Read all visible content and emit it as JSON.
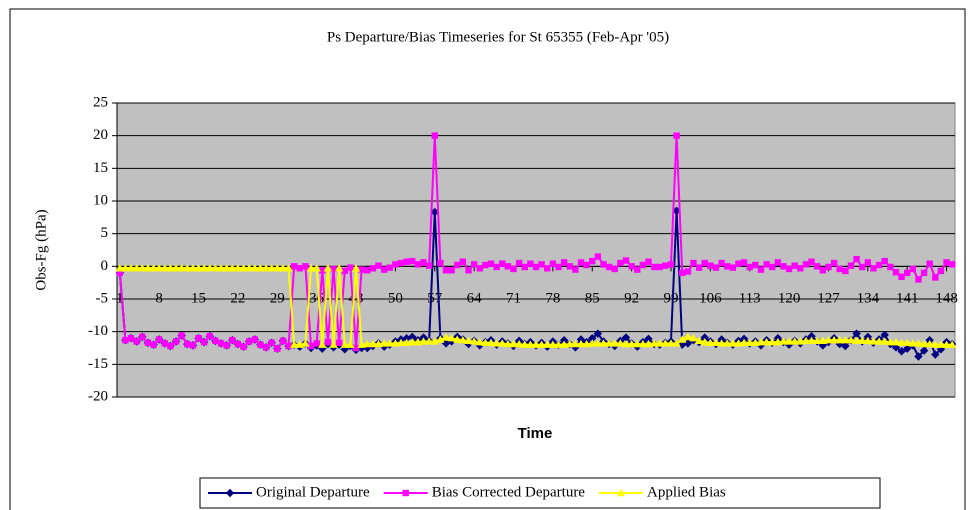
{
  "chart_data": {
    "type": "line",
    "title": "Ps Departure/Bias Timeseries for St 65355 (Feb-Apr '05)",
    "x_label": "Time",
    "y_label": "Obs-Fg (hPa)",
    "x": [
      1,
      2,
      3,
      4,
      5,
      6,
      7,
      8,
      9,
      10,
      11,
      12,
      13,
      14,
      15,
      16,
      17,
      18,
      19,
      20,
      21,
      22,
      23,
      24,
      25,
      26,
      27,
      28,
      29,
      30,
      31,
      32,
      33,
      34,
      35,
      36,
      37,
      38,
      39,
      40,
      41,
      42,
      43,
      44,
      45,
      46,
      47,
      48,
      49,
      50,
      51,
      52,
      53,
      54,
      55,
      56,
      57,
      58,
      59,
      60,
      61,
      62,
      63,
      64,
      65,
      66,
      67,
      68,
      69,
      70,
      71,
      72,
      73,
      74,
      75,
      76,
      77,
      78,
      79,
      80,
      81,
      82,
      83,
      84,
      85,
      86,
      87,
      88,
      89,
      90,
      91,
      92,
      93,
      94,
      95,
      96,
      97,
      98,
      99,
      100,
      101,
      102,
      103,
      104,
      105,
      106,
      107,
      108,
      109,
      110,
      111,
      112,
      113,
      114,
      115,
      116,
      117,
      118,
      119,
      120,
      121,
      122,
      123,
      124,
      125,
      126,
      127,
      128,
      129,
      130,
      131,
      132,
      133,
      134,
      135,
      136,
      137,
      138,
      139,
      140,
      141,
      142,
      143,
      144,
      145,
      146,
      147,
      148,
      149
    ],
    "xlim": [
      0.5,
      149.5
    ],
    "xticks": [
      1,
      8,
      15,
      22,
      29,
      36,
      43,
      50,
      57,
      64,
      71,
      78,
      85,
      92,
      99,
      106,
      113,
      120,
      127,
      134,
      141,
      148
    ],
    "ylim": [
      -20,
      25
    ],
    "yticks": [
      -20,
      -15,
      -10,
      -5,
      0,
      5,
      10,
      15,
      20,
      25
    ],
    "grid": true,
    "legend": "bottom",
    "series": [
      {
        "name": "Original Departure",
        "color": "#000080",
        "marker": "diamond",
        "values": [
          -1,
          -11.3,
          -11.0,
          -11.5,
          -10.8,
          -11.7,
          -12.0,
          -11.2,
          -11.8,
          -12.2,
          -11.5,
          -10.6,
          -11.9,
          -12.1,
          -11.0,
          -11.6,
          -10.7,
          -11.4,
          -11.8,
          -12.1,
          -11.3,
          -11.9,
          -12.3,
          -11.5,
          -11.2,
          -12.0,
          -12.4,
          -11.7,
          -12.6,
          -11.4,
          -12.2,
          -12.0,
          -12.3,
          -11.8,
          -12.5,
          -12.1,
          -12.6,
          -11.9,
          -12.4,
          -12.0,
          -12.7,
          -12.2,
          -12.8,
          -12.5,
          -12.5,
          -12.2,
          -11.8,
          -12.3,
          -12.0,
          -11.5,
          -11.2,
          -11.0,
          -10.8,
          -11.3,
          -10.9,
          -11.4,
          8.3,
          -11.0,
          -11.8,
          -11.5,
          -10.8,
          -11.2,
          -11.9,
          -11.4,
          -12.1,
          -11.6,
          -11.3,
          -12.0,
          -11.5,
          -11.8,
          -12.2,
          -11.4,
          -11.9,
          -11.6,
          -12.1,
          -11.7,
          -12.3,
          -11.5,
          -12.0,
          -11.3,
          -11.9,
          -12.4,
          -11.2,
          -11.6,
          -11.0,
          -10.3,
          -11.5,
          -11.9,
          -12.2,
          -11.4,
          -10.9,
          -11.8,
          -12.3,
          -11.6,
          -11.1,
          -11.9,
          -12.0,
          -11.7,
          -11.5,
          8.5,
          -12.0,
          -11.8,
          -11.3,
          -11.6,
          -10.9,
          -11.5,
          -11.9,
          -11.2,
          -11.7,
          -12.0,
          -11.4,
          -11.1,
          -11.8,
          -11.5,
          -12.1,
          -11.3,
          -11.7,
          -11.0,
          -11.6,
          -12.0,
          -11.4,
          -11.8,
          -11.2,
          -10.7,
          -11.5,
          -12.1,
          -11.6,
          -11.0,
          -11.9,
          -12.2,
          -11.3,
          -10.3,
          -11.5,
          -10.8,
          -11.7,
          -11.2,
          -10.5,
          -11.9,
          -12.4,
          -13.0,
          -12.6,
          -12.1,
          -13.8,
          -12.9,
          -11.3,
          -13.5,
          -12.7,
          -11.6,
          -11.9
        ]
      },
      {
        "name": "Bias Corrected Departure",
        "color": "#ff00ff",
        "marker": "square",
        "values": [
          -1,
          -11.3,
          -11.0,
          -11.5,
          -10.8,
          -11.7,
          -12.0,
          -11.2,
          -11.8,
          -12.2,
          -11.5,
          -10.6,
          -11.9,
          -12.1,
          -11.0,
          -11.6,
          -10.7,
          -11.4,
          -11.8,
          -12.1,
          -11.3,
          -11.9,
          -12.3,
          -11.5,
          -11.2,
          -12.0,
          -12.4,
          -11.7,
          -12.6,
          -11.4,
          -12.2,
          0.0,
          -0.3,
          0.0,
          -12.2,
          -11.8,
          -0.6,
          -11.6,
          -0.4,
          -11.7,
          -0.7,
          -0.2,
          -12.5,
          -0.5,
          -0.6,
          -0.3,
          0.1,
          -0.5,
          -0.2,
          0.3,
          0.5,
          0.7,
          0.8,
          0.3,
          0.6,
          0.1,
          20,
          0.5,
          -0.6,
          -0.6,
          0.2,
          0.7,
          -0.6,
          0.3,
          -0.3,
          0.2,
          0.4,
          -0.1,
          0.4,
          0.0,
          -0.4,
          0.5,
          -0.1,
          0.4,
          -0.1,
          0.3,
          -0.3,
          0.4,
          -0.1,
          0.6,
          0.0,
          -0.5,
          0.6,
          0.2,
          0.8,
          1.5,
          0.3,
          -0.1,
          -0.4,
          0.5,
          0.9,
          0.0,
          -0.5,
          0.2,
          0.7,
          -0.1,
          -0.1,
          0.1,
          0.3,
          20,
          -1.0,
          -0.8,
          0.5,
          -0.2,
          0.5,
          0.1,
          -0.2,
          0.5,
          0.0,
          -0.2,
          0.4,
          0.6,
          -0.1,
          0.2,
          -0.5,
          0.3,
          -0.1,
          0.6,
          0.0,
          -0.4,
          0.1,
          -0.3,
          0.3,
          0.7,
          0.0,
          -0.6,
          -0.1,
          0.5,
          -0.4,
          -0.7,
          0.1,
          1.1,
          -0.1,
          0.6,
          -0.3,
          0.2,
          0.8,
          -0.1,
          -0.9,
          -1.6,
          -1.0,
          -0.4,
          -2.0,
          -1.0,
          0.4,
          -1.7,
          -0.7,
          0.6,
          0.3
        ]
      },
      {
        "name": "Applied Bias",
        "color": "#ffff00",
        "marker": "triangle",
        "values": [
          -0.3,
          -0.3,
          -0.3,
          -0.3,
          -0.3,
          -0.3,
          -0.3,
          -0.3,
          -0.3,
          -0.3,
          -0.3,
          -0.3,
          -0.3,
          -0.3,
          -0.3,
          -0.3,
          -0.3,
          -0.3,
          -0.3,
          -0.3,
          -0.3,
          -0.3,
          -0.3,
          -0.3,
          -0.3,
          -0.3,
          -0.3,
          -0.3,
          -0.3,
          -0.3,
          -0.3,
          -12,
          -12,
          -11.8,
          -0.3,
          -0.3,
          -12,
          -0.3,
          -12,
          -0.3,
          -12,
          -12,
          -0.3,
          -12,
          -11.9,
          -11.9,
          -11.9,
          -11.8,
          -11.8,
          -11.8,
          -11.7,
          -11.7,
          -11.6,
          -11.6,
          -11.5,
          -11.5,
          -11.5,
          -11.2,
          -10.9,
          -11.0,
          -11.2,
          -11.3,
          -11.4,
          -11.5,
          -11.6,
          -11.7,
          -11.7,
          -11.8,
          -11.8,
          -11.9,
          -11.9,
          -11.9,
          -12.0,
          -12.0,
          -12.0,
          -12.0,
          -12.0,
          -12.0,
          -12.0,
          -12.0,
          -11.9,
          -11.9,
          -11.9,
          -11.9,
          -11.8,
          -11.8,
          -11.8,
          -11.8,
          -11.8,
          -11.8,
          -11.9,
          -11.9,
          -11.9,
          -11.9,
          -11.9,
          -11.8,
          -11.8,
          -11.8,
          -11.8,
          -11.8,
          -11.2,
          -10.8,
          -11.0,
          -11.4,
          -11.6,
          -11.7,
          -11.7,
          -11.8,
          -11.8,
          -11.8,
          -11.8,
          -11.7,
          -11.7,
          -11.7,
          -11.6,
          -11.6,
          -11.6,
          -11.6,
          -11.5,
          -11.5,
          -11.5,
          -11.5,
          -11.4,
          -11.4,
          -11.4,
          -11.4,
          -11.3,
          -11.3,
          -11.3,
          -11.3,
          -11.3,
          -11.4,
          -11.4,
          -11.4,
          -11.5,
          -11.5,
          -11.5,
          -11.6,
          -11.6,
          -11.7,
          -11.7,
          -11.8,
          -11.8,
          -11.9,
          -11.9,
          -12.0,
          -12.0,
          -12.0,
          -12.0
        ]
      }
    ]
  }
}
